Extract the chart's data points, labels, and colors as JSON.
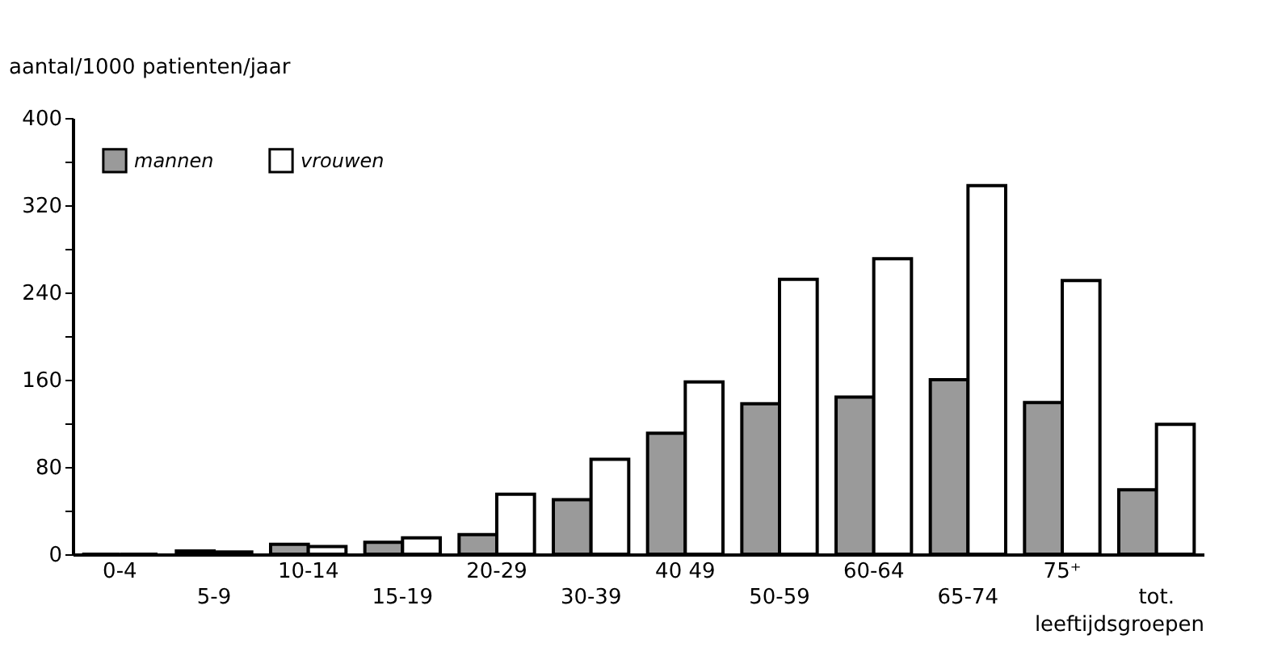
{
  "chart_data": {
    "type": "bar",
    "ylabel": "aantal/1000 patienten/jaar",
    "xlabel": "leeftijdsgroepen",
    "categories": [
      "0-4",
      "5-9",
      "10-14",
      "15-19",
      "20-29",
      "30-39",
      "40 49",
      "50-59",
      "60-64",
      "65-74",
      "75⁺",
      "tot."
    ],
    "series": [
      {
        "name": "mannen",
        "color": "#9a9a9a",
        "values": [
          0,
          3,
          9,
          11,
          18,
          50,
          111,
          138,
          144,
          160,
          139,
          59
        ]
      },
      {
        "name": "vrouwen",
        "color": "#ffffff",
        "values": [
          0,
          2,
          7,
          15,
          55,
          87,
          158,
          252,
          271,
          338,
          251,
          119
        ]
      }
    ],
    "ylim": [
      0,
      400
    ],
    "yticks": [
      0,
      {
        "value": 40,
        "label": null
      },
      80,
      {
        "value": 120,
        "label": null
      },
      160,
      {
        "value": 200,
        "label": null
      },
      240,
      {
        "value": 280,
        "label": null
      },
      320,
      {
        "value": 360,
        "label": null
      },
      400
    ],
    "grid": false,
    "legend": "top left"
  }
}
